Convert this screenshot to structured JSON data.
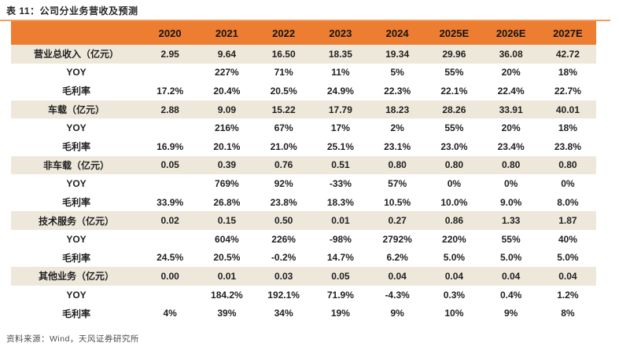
{
  "page": {
    "title": "表 11：公司分业务营收及预测",
    "source": "资料来源：Wind，天风证券研究所"
  },
  "colors": {
    "header_bg": "#ED7D31",
    "category_row_bg": "#EDE8DA",
    "accent_line": "#F19D63",
    "text": "#1F1F1F",
    "source_text": "#4D4D4D"
  },
  "chart_data": {
    "type": "table",
    "title": "表 11：公司分业务营收及预测",
    "columns": [
      "",
      "2020",
      "2021",
      "2022",
      "2023",
      "2024",
      "2025E",
      "2026E",
      "2027E"
    ],
    "rows": [
      {
        "label": "营业总收入（亿元）",
        "type": "category",
        "values": [
          "2.95",
          "9.64",
          "16.50",
          "18.35",
          "19.34",
          "29.96",
          "36.08",
          "42.72"
        ]
      },
      {
        "label": "YOY",
        "type": "sub",
        "values": [
          "",
          "227%",
          "71%",
          "11%",
          "5%",
          "55%",
          "20%",
          "18%"
        ]
      },
      {
        "label": "毛利率",
        "type": "sub",
        "values": [
          "17.2%",
          "20.4%",
          "20.5%",
          "24.9%",
          "22.3%",
          "22.1%",
          "22.4%",
          "22.7%"
        ]
      },
      {
        "label": "车载（亿元）",
        "type": "category",
        "values": [
          "2.88",
          "9.09",
          "15.22",
          "17.79",
          "18.23",
          "28.26",
          "33.91",
          "40.01"
        ]
      },
      {
        "label": "YOY",
        "type": "sub",
        "values": [
          "",
          "216%",
          "67%",
          "17%",
          "2%",
          "55%",
          "20%",
          "18%"
        ]
      },
      {
        "label": "毛利率",
        "type": "sub",
        "values": [
          "16.9%",
          "20.1%",
          "21.0%",
          "25.1%",
          "23.1%",
          "23.0%",
          "23.4%",
          "23.8%"
        ]
      },
      {
        "label": "非车载（亿元）",
        "type": "category",
        "values": [
          "0.05",
          "0.39",
          "0.76",
          "0.51",
          "0.80",
          "0.80",
          "0.80",
          "0.80"
        ]
      },
      {
        "label": "YOY",
        "type": "sub",
        "values": [
          "",
          "769%",
          "92%",
          "-33%",
          "57%",
          "0%",
          "0%",
          "0%"
        ]
      },
      {
        "label": "毛利率",
        "type": "sub",
        "values": [
          "33.9%",
          "26.8%",
          "23.8%",
          "18.3%",
          "10.5%",
          "10.0%",
          "9.0%",
          "8.0%"
        ]
      },
      {
        "label": "技术服务（亿元）",
        "type": "category",
        "values": [
          "0.02",
          "0.15",
          "0.50",
          "0.01",
          "0.27",
          "0.86",
          "1.33",
          "1.87"
        ]
      },
      {
        "label": "YOY",
        "type": "sub",
        "values": [
          "",
          "604%",
          "226%",
          "-98%",
          "2792%",
          "220%",
          "55%",
          "40%"
        ]
      },
      {
        "label": "毛利率",
        "type": "sub",
        "values": [
          "24.5%",
          "20.5%",
          "-0.2%",
          "14.7%",
          "6.2%",
          "5.0%",
          "5.0%",
          "5.0%"
        ]
      },
      {
        "label": "其他业务（亿元）",
        "type": "category",
        "values": [
          "0.00",
          "0.01",
          "0.03",
          "0.05",
          "0.04",
          "0.04",
          "0.04",
          "0.04"
        ]
      },
      {
        "label": "YOY",
        "type": "sub",
        "values": [
          "",
          "184.2%",
          "192.1%",
          "71.9%",
          "-4.3%",
          "0.3%",
          "0.4%",
          "1.2%"
        ]
      },
      {
        "label": "毛利率",
        "type": "sub",
        "values": [
          "4%",
          "39%",
          "34%",
          "19%",
          "9%",
          "10%",
          "9%",
          "8%"
        ]
      }
    ]
  }
}
